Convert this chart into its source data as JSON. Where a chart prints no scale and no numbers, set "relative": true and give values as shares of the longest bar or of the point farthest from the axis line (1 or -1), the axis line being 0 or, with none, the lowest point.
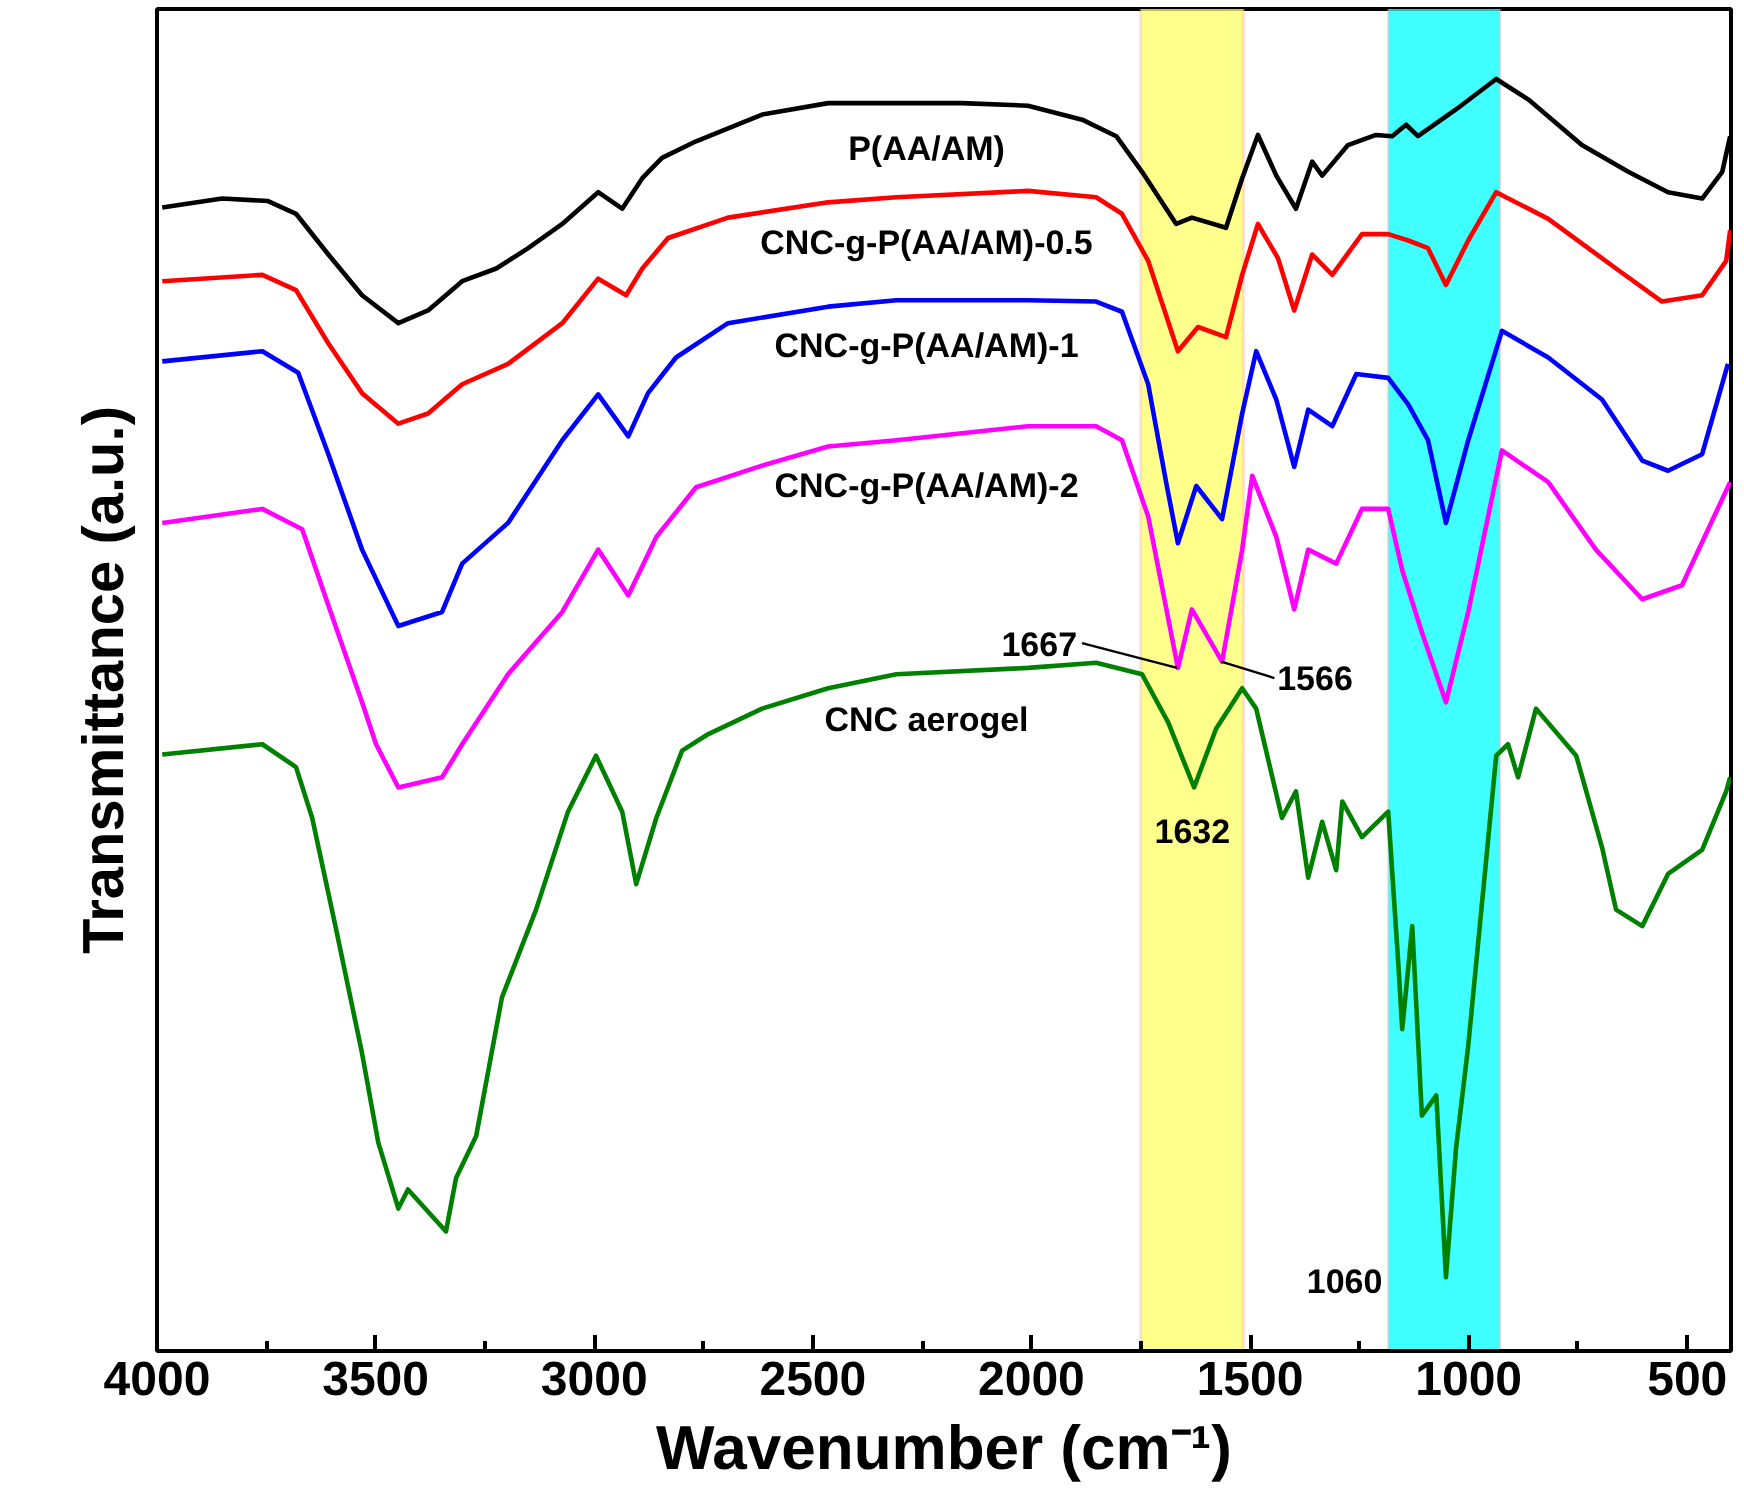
{
  "chart_data": {
    "type": "line",
    "relative": true,
    "xlabel": "Wavenumber (cm⁻¹)",
    "ylabel": "Transmittance (a.u.)",
    "xlim": [
      4000,
      400
    ],
    "xticks": [
      4000,
      {
        "value": 3750,
        "label": null
      },
      3500,
      {
        "value": 3250,
        "label": null
      },
      3000,
      {
        "value": 2750,
        "label": null
      },
      2500,
      {
        "value": 2250,
        "label": null
      },
      2000,
      {
        "value": 1750,
        "label": null
      },
      1500,
      {
        "value": 1250,
        "label": null
      },
      1000,
      {
        "value": 750,
        "label": null
      },
      500
    ],
    "grid": false,
    "legend": false,
    "tick_labels": "x",
    "line_style": "solid",
    "series": [
      {
        "name": "P(AA/AM)",
        "color": "#000000",
        "x": [
          3988,
          3851,
          3746,
          3682,
          3608,
          3531,
          3448,
          3380,
          3302,
          3224,
          3151,
          3073,
          2991,
          2936,
          2890,
          2845,
          2767,
          2616,
          2465,
          2309,
          2159,
          2008,
          1884,
          1806,
          1747,
          1669,
          1633,
          1555,
          1518,
          1482,
          1440,
          1395,
          1358,
          1335,
          1276,
          1212,
          1175,
          1143,
          1116,
          1029,
          937,
          864,
          741,
          635,
          544,
          466,
          420,
          402
        ],
        "values": [
          0.899,
          0.906,
          0.904,
          0.894,
          0.862,
          0.83,
          0.808,
          0.818,
          0.841,
          0.851,
          0.867,
          0.886,
          0.911,
          0.898,
          0.922,
          0.938,
          0.951,
          0.972,
          0.981,
          0.981,
          0.981,
          0.979,
          0.968,
          0.955,
          0.927,
          0.886,
          0.891,
          0.883,
          0.922,
          0.956,
          0.924,
          0.898,
          0.935,
          0.924,
          0.948,
          0.956,
          0.955,
          0.964,
          0.955,
          0.976,
          1.0,
          0.984,
          0.948,
          0.927,
          0.911,
          0.906,
          0.927,
          0.955
        ]
      },
      {
        "name": "CNC-g-P(AA/AM)-0.5",
        "color": "#ff0000",
        "x": [
          3988,
          3759,
          3682,
          3608,
          3531,
          3448,
          3380,
          3302,
          3197,
          3073,
          2991,
          2927,
          2890,
          2831,
          2694,
          2465,
          2309,
          2008,
          1852,
          1793,
          1733,
          1665,
          1619,
          1555,
          1518,
          1482,
          1436,
          1399,
          1358,
          1312,
          1244,
          1184,
          1138,
          1093,
          1052,
          1001,
          937,
          818,
          663,
          558,
          466,
          411,
          402
        ],
        "values": [
          0.841,
          0.846,
          0.834,
          0.792,
          0.753,
          0.729,
          0.737,
          0.76,
          0.776,
          0.808,
          0.843,
          0.83,
          0.851,
          0.875,
          0.891,
          0.903,
          0.907,
          0.912,
          0.907,
          0.894,
          0.857,
          0.786,
          0.805,
          0.797,
          0.846,
          0.886,
          0.859,
          0.818,
          0.862,
          0.846,
          0.878,
          0.878,
          0.873,
          0.867,
          0.838,
          0.873,
          0.911,
          0.89,
          0.851,
          0.825,
          0.83,
          0.857,
          0.881
        ]
      },
      {
        "name": "CNC-g-P(AA/AM)-1",
        "color": "#0000ff",
        "x": [
          3988,
          3759,
          3677,
          3608,
          3531,
          3448,
          3348,
          3302,
          3197,
          3073,
          2991,
          2922,
          2877,
          2813,
          2694,
          2465,
          2309,
          2008,
          1852,
          1793,
          1733,
          1692,
          1665,
          1623,
          1564,
          1518,
          1486,
          1440,
          1399,
          1367,
          1312,
          1257,
          1184,
          1138,
          1093,
          1052,
          1001,
          924,
          818,
          695,
          603,
          544,
          466,
          407
        ],
        "values": [
          0.778,
          0.786,
          0.769,
          0.705,
          0.63,
          0.57,
          0.581,
          0.619,
          0.651,
          0.716,
          0.752,
          0.719,
          0.753,
          0.781,
          0.808,
          0.821,
          0.826,
          0.826,
          0.825,
          0.817,
          0.76,
          0.683,
          0.635,
          0.68,
          0.654,
          0.737,
          0.786,
          0.748,
          0.695,
          0.74,
          0.727,
          0.768,
          0.765,
          0.744,
          0.716,
          0.651,
          0.716,
          0.802,
          0.781,
          0.748,
          0.7,
          0.692,
          0.705,
          0.776
        ]
      },
      {
        "name": "CNC-g-P(AA/AM)-2",
        "color": "#ff00ff",
        "x": [
          3988,
          3759,
          3668,
          3608,
          3531,
          3499,
          3448,
          3348,
          3302,
          3197,
          3073,
          2991,
          2922,
          2858,
          2767,
          2616,
          2465,
          2309,
          2008,
          1852,
          1793,
          1733,
          1665,
          1633,
          1564,
          1518,
          1495,
          1440,
          1399,
          1367,
          1303,
          1244,
          1184,
          1152,
          1107,
          1052,
          1001,
          924,
          818,
          709,
          603,
          512,
          402
        ],
        "values": [
          0.651,
          0.662,
          0.646,
          0.586,
          0.51,
          0.477,
          0.443,
          0.451,
          0.477,
          0.532,
          0.581,
          0.63,
          0.594,
          0.64,
          0.679,
          0.696,
          0.711,
          0.716,
          0.727,
          0.727,
          0.716,
          0.656,
          0.537,
          0.583,
          0.542,
          0.63,
          0.688,
          0.64,
          0.583,
          0.63,
          0.619,
          0.662,
          0.662,
          0.614,
          0.565,
          0.51,
          0.581,
          0.708,
          0.683,
          0.63,
          0.591,
          0.602,
          0.683
        ]
      },
      {
        "name": "CNC aerogel",
        "color": "#008000",
        "x": [
          3988,
          3759,
          3682,
          3645,
          3590,
          3531,
          3494,
          3448,
          3426,
          3339,
          3316,
          3270,
          3211,
          3133,
          3060,
          2996,
          2936,
          2904,
          2858,
          2799,
          2739,
          2616,
          2465,
          2309,
          2008,
          1852,
          1747,
          1687,
          1628,
          1578,
          1518,
          1486,
          1427,
          1395,
          1367,
          1335,
          1303,
          1289,
          1244,
          1184,
          1161,
          1152,
          1129,
          1107,
          1074,
          1052,
          1029,
          1001,
          937,
          910,
          887,
          846,
          754,
          695,
          663,
          603,
          544,
          466,
          411,
          402
        ],
        "values": [
          0.469,
          0.477,
          0.459,
          0.419,
          0.331,
          0.234,
          0.164,
          0.112,
          0.127,
          0.094,
          0.136,
          0.169,
          0.278,
          0.347,
          0.424,
          0.468,
          0.424,
          0.367,
          0.419,
          0.472,
          0.485,
          0.505,
          0.521,
          0.532,
          0.537,
          0.541,
          0.532,
          0.494,
          0.443,
          0.489,
          0.521,
          0.505,
          0.419,
          0.44,
          0.372,
          0.416,
          0.378,
          0.432,
          0.404,
          0.424,
          0.305,
          0.253,
          0.334,
          0.185,
          0.201,
          0.058,
          0.159,
          0.24,
          0.468,
          0.477,
          0.451,
          0.505,
          0.468,
          0.396,
          0.347,
          0.334,
          0.375,
          0.394,
          0.44,
          0.451
        ]
      }
    ],
    "bands": [
      {
        "axis": "x",
        "from": 1750,
        "to": 1515,
        "label": null,
        "color": "#ffff66"
      },
      {
        "axis": "x",
        "from": 1184,
        "to": 928,
        "label": null,
        "color": "#00ffff"
      }
    ],
    "annotations": [
      {
        "text": "1667",
        "x": 1667,
        "y": 0.537
      },
      {
        "text": "1566",
        "x": 1566,
        "y": 0.542
      },
      {
        "text": "1632",
        "x": 1632,
        "y": 0.443
      },
      {
        "text": "1060",
        "x": 1060,
        "y": 0.058
      }
    ]
  }
}
